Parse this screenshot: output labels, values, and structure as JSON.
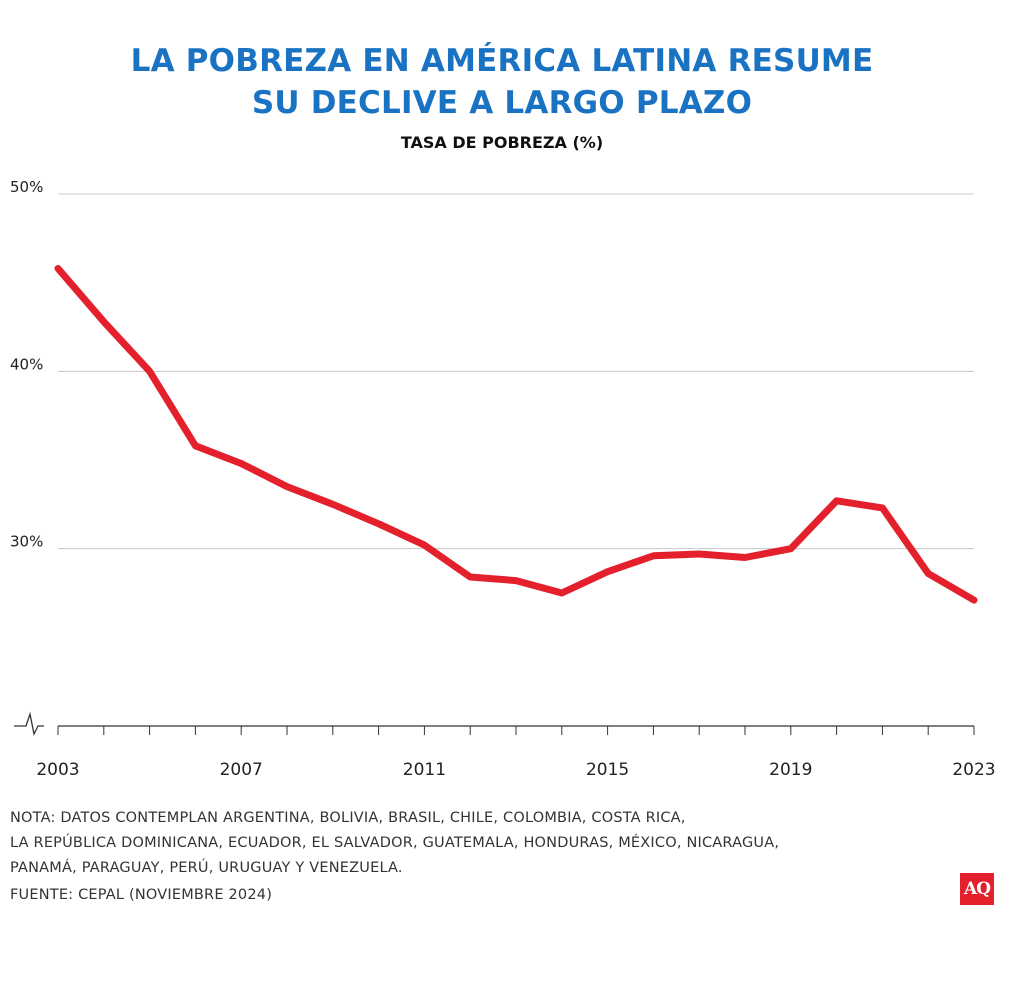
{
  "title": {
    "line1": "LA POBREZA EN AMÉRICA LATINA RESUME",
    "line2": "SU DECLIVE A LARGO PLAZO"
  },
  "subtitle": "TASA DE POBREZA (%)",
  "notes": [
    "NOTA: DATOS CONTEMPLAN ARGENTINA, BOLIVIA, BRASIL, CHILE, COLOMBIA, COSTA RICA,",
    "LA REPÚBLICA DOMINICANA, ECUADOR, EL SALVADOR, GUATEMALA, HONDURAS, MÉXICO, NICARAGUA,",
    "PANAMÁ, PARAGUAY, PERÚ, URUGUAY Y VENEZUELA."
  ],
  "source": "FUENTE: CEPAL (NOVIEMBRE 2024)",
  "logo": "AQ",
  "colors": {
    "title": "#1a73c2",
    "line": "#e3202b",
    "grid": "#c8c8c8",
    "axis": "#333333"
  },
  "chart_data": {
    "type": "line",
    "x": [
      2003,
      2004,
      2005,
      2006,
      2007,
      2008,
      2009,
      2010,
      2011,
      2012,
      2013,
      2014,
      2015,
      2016,
      2017,
      2018,
      2019,
      2020,
      2021,
      2022,
      2023
    ],
    "series": [
      {
        "values": [
          45.8,
          42.8,
          40.0,
          35.8,
          34.8,
          33.5,
          32.5,
          31.4,
          30.2,
          28.4,
          28.2,
          27.5,
          28.7,
          29.6,
          29.7,
          29.5,
          30.0,
          32.7,
          32.3,
          28.6,
          27.1
        ]
      }
    ],
    "yticks": [
      30,
      40,
      50
    ],
    "ytick_labels": [
      "30%",
      "40%",
      "50%"
    ],
    "xticks": [
      2003,
      2007,
      2011,
      2015,
      2019,
      2023
    ],
    "xtick_labels": [
      "2003",
      "2007",
      "2011",
      "2015",
      "2019",
      "2023"
    ],
    "xlim": [
      2003,
      2023
    ],
    "ylim": [
      20,
      50
    ],
    "y_axis_break": true,
    "grid": true
  }
}
